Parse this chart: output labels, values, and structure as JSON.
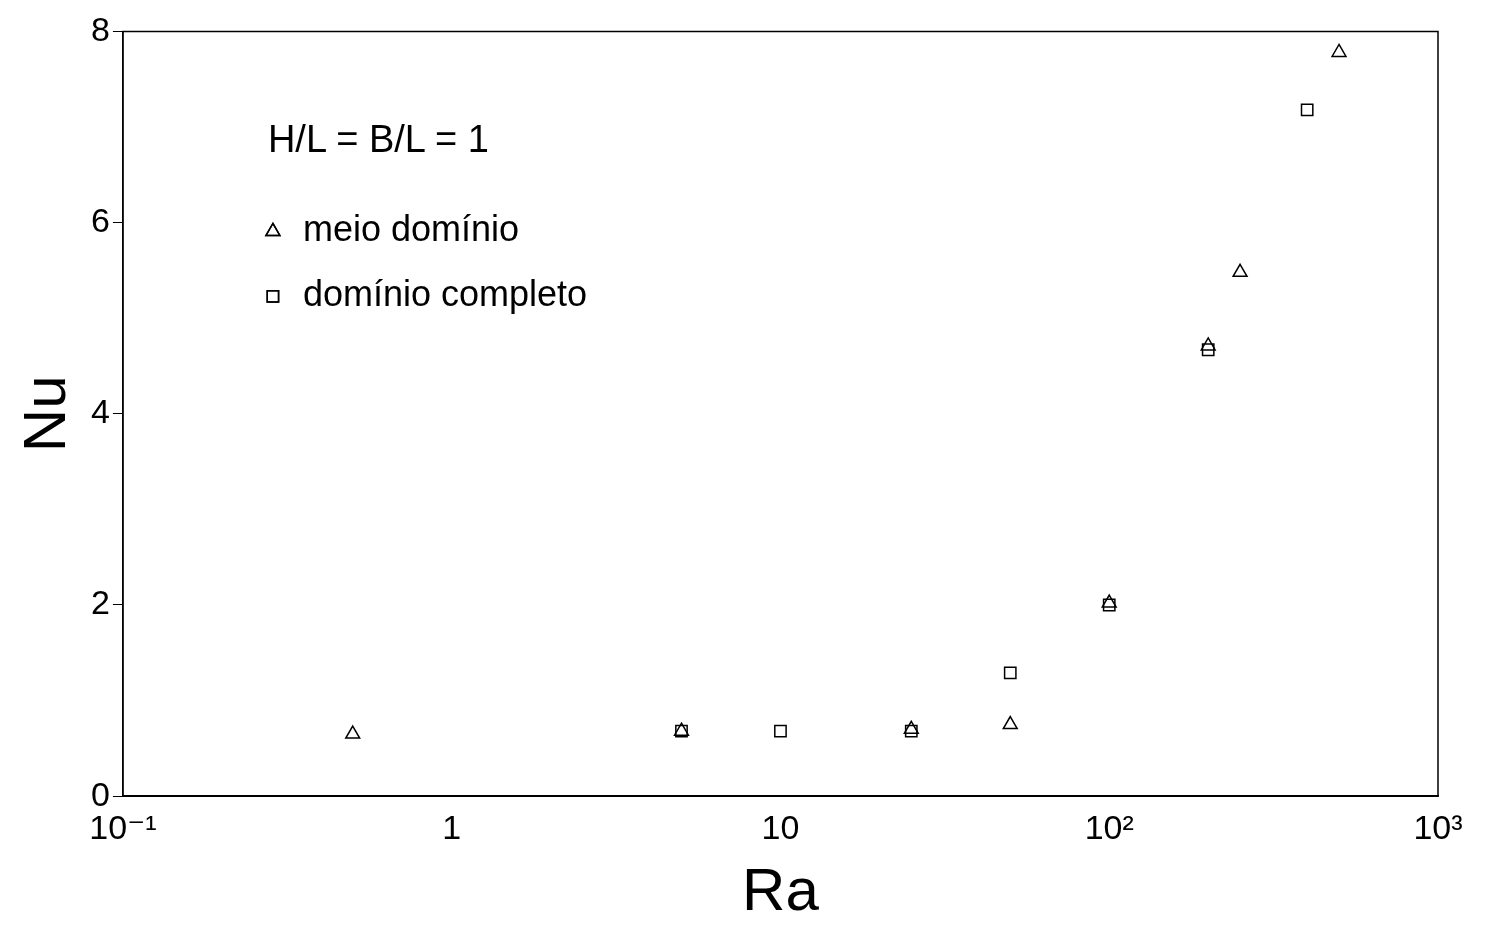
{
  "chart_data": {
    "type": "scatter",
    "xlabel": "Ra",
    "ylabel": "Nu",
    "log": "x",
    "xlim": [
      0.1,
      1000
    ],
    "xticks": [
      {
        "value": 0.1,
        "label": "10⁻¹"
      },
      1,
      10,
      {
        "value": 100,
        "label": "10²"
      },
      {
        "value": 1000,
        "label": "10³"
      }
    ],
    "ylim": [
      0,
      8
    ],
    "yticks": [
      0,
      2,
      4,
      6,
      8
    ],
    "grid": false,
    "legend": "top left",
    "annotations": [
      "H/L = B/L = 1"
    ],
    "series": [
      {
        "name": "meio domínio",
        "color": "#000000",
        "marker": "triangle",
        "x": [
          0.5,
          5,
          25,
          50,
          100,
          200,
          250,
          500
        ],
        "values": [
          0.65,
          0.68,
          0.7,
          0.75,
          2.02,
          4.71,
          5.48,
          7.78
        ]
      },
      {
        "name": "domínio completo",
        "color": "#000000",
        "marker": "square",
        "x": [
          5,
          10,
          25,
          50,
          100,
          200,
          400
        ],
        "values": [
          0.68,
          0.68,
          0.68,
          1.29,
          2.0,
          4.67,
          7.18
        ]
      }
    ]
  }
}
